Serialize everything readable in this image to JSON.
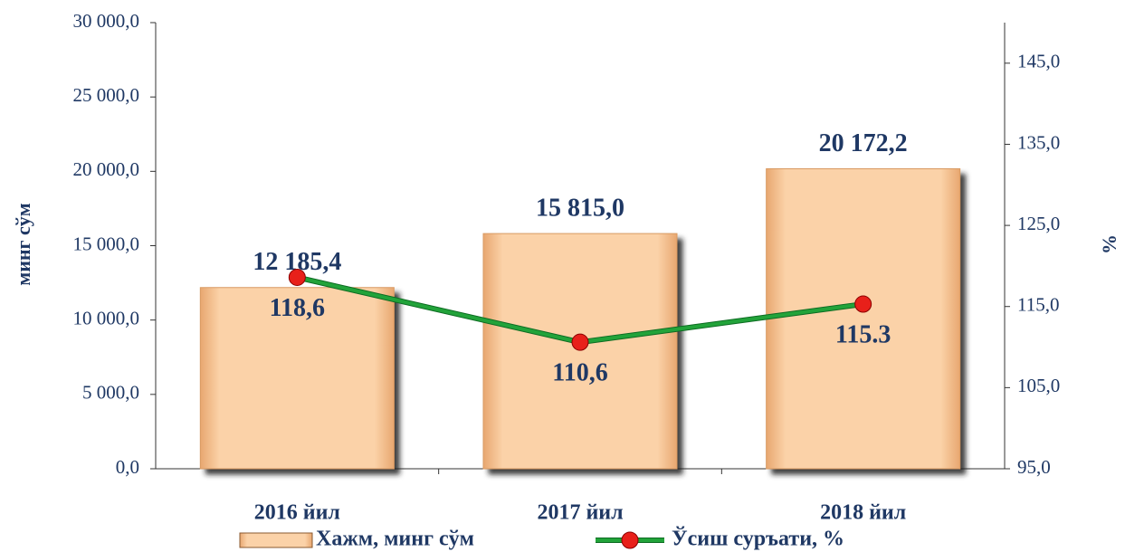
{
  "chart_data": {
    "type": "bar",
    "y_label": "минг сўм",
    "y2_label": "%",
    "categories": [
      "2016 йил",
      "2017 йил",
      "2018 йил"
    ],
    "series": [
      {
        "name": "Хажм, минг сўм",
        "type": "bar",
        "color": "#f7c08c",
        "values": [
          12185.4,
          15815.0,
          20172.2
        ],
        "value_labels": [
          "12 185,4",
          "15 815,0",
          "20 172,2"
        ]
      },
      {
        "name": "Ўсиш суръати, %",
        "type": "line",
        "axis": "y2",
        "color": "#22a33a",
        "marker_color": "#e8201a",
        "values": [
          118.6,
          110.6,
          115.3
        ],
        "value_labels": [
          "118,6",
          "110,6",
          "115.3"
        ]
      }
    ],
    "ylim": [
      0,
      30000
    ],
    "yticks": [
      {
        "value": 0,
        "label": "0,0"
      },
      {
        "value": 5000,
        "label": "5 000,0"
      },
      {
        "value": 10000,
        "label": "10 000,0"
      },
      {
        "value": 15000,
        "label": "15 000,0"
      },
      {
        "value": 20000,
        "label": "20 000,0"
      },
      {
        "value": 25000,
        "label": "25 000,0"
      },
      {
        "value": 30000,
        "label": "30 000,0"
      }
    ],
    "y2lim": [
      95,
      150
    ],
    "y2ticks": [
      {
        "value": 95,
        "label": "95,0"
      },
      {
        "value": 105,
        "label": "105,0"
      },
      {
        "value": 115,
        "label": "115,0"
      },
      {
        "value": 125,
        "label": "125,0"
      },
      {
        "value": 135,
        "label": "135,0"
      },
      {
        "value": 145,
        "label": "145,0"
      }
    ],
    "legend": "bottom"
  }
}
